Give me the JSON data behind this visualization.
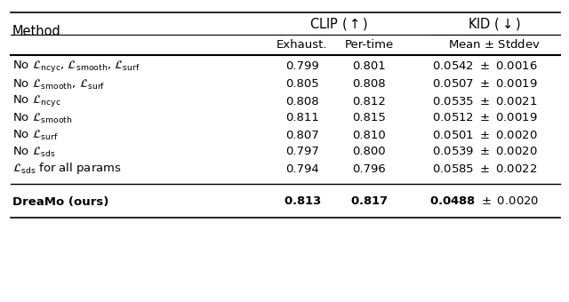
{
  "rows": [
    {
      "method": "No $\\mathcal{L}_{\\mathrm{ncyc}}$, $\\mathcal{L}_{\\mathrm{smooth}}$, $\\mathcal{L}_{\\mathrm{surf}}$",
      "exhaust": "0.799",
      "pertime": "0.801",
      "kid_bold": "",
      "kid_val": "0.0542",
      "kid_std": "0.0016",
      "bold": false
    },
    {
      "method": "No $\\mathcal{L}_{\\mathrm{smooth}}$, $\\mathcal{L}_{\\mathrm{surf}}$",
      "exhaust": "0.805",
      "pertime": "0.808",
      "kid_bold": "",
      "kid_val": "0.0507",
      "kid_std": "0.0019",
      "bold": false
    },
    {
      "method": "No $\\mathcal{L}_{\\mathrm{ncyc}}$",
      "exhaust": "0.808",
      "pertime": "0.812",
      "kid_bold": "",
      "kid_val": "0.0535",
      "kid_std": "0.0021",
      "bold": false
    },
    {
      "method": "No $\\mathcal{L}_{\\mathrm{smooth}}$",
      "exhaust": "0.811",
      "pertime": "0.815",
      "kid_bold": "",
      "kid_val": "0.0512",
      "kid_std": "0.0019",
      "bold": false
    },
    {
      "method": "No $\\mathcal{L}_{\\mathrm{surf}}$",
      "exhaust": "0.807",
      "pertime": "0.810",
      "kid_bold": "",
      "kid_val": "0.0501",
      "kid_std": "0.0020",
      "bold": false
    },
    {
      "method": "No $\\mathcal{L}_{\\mathrm{sds}}$",
      "exhaust": "0.797",
      "pertime": "0.800",
      "kid_bold": "",
      "kid_val": "0.0539",
      "kid_std": "0.0020",
      "bold": false
    },
    {
      "method": "$\\mathcal{L}_{\\mathrm{sds}}$ for all params",
      "exhaust": "0.794",
      "pertime": "0.796",
      "kid_bold": "",
      "kid_val": "0.0585",
      "kid_std": "0.0022",
      "bold": false
    },
    {
      "method": "DreaMo (ours)",
      "exhaust": "0.813",
      "pertime": "0.817",
      "kid_bold": "bold",
      "kid_val": "0.0488",
      "kid_std": "0.0020",
      "bold": true
    }
  ],
  "bg_color": "#ffffff",
  "text_color": "#000000",
  "fs": 9.5,
  "hfs": 10.5
}
